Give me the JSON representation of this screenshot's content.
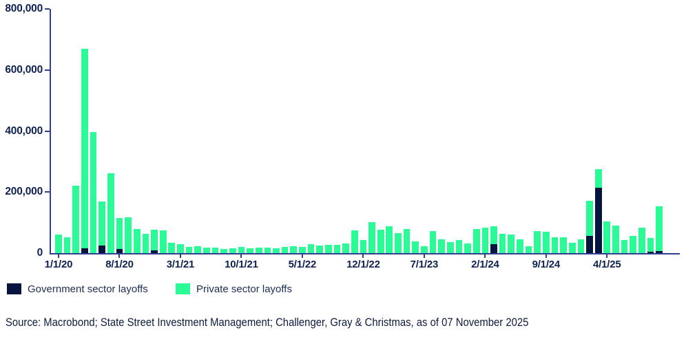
{
  "colors": {
    "government": "#061440",
    "private": "#2afb96",
    "axis": "#2e3f8f",
    "tick_text": "#0f2150",
    "legend_text": "#1b2c55",
    "source_text": "#0c1b3d",
    "background": "#ffffff"
  },
  "legend": {
    "items": [
      {
        "label": "Government sector layoffs",
        "color": "#061440"
      },
      {
        "label": "Private sector layoffs",
        "color": "#2afb96"
      }
    ]
  },
  "source": {
    "text": "Source: Macrobond; State Street Investment Management; Challenger, Gray & Christmas, as of 07 November 2025"
  },
  "chart_data": {
    "type": "bar",
    "stacked": true,
    "grid": false,
    "legend_position": "bottom-left",
    "ylim": [
      0,
      800000
    ],
    "y_ticks": [
      0,
      200000,
      400000,
      600000,
      800000
    ],
    "y_tick_labels": [
      "0",
      "200,000",
      "400,000",
      "600,000",
      "800,000"
    ],
    "x_tick_every": 7,
    "x_tick_labels": [
      "1/1/20",
      "8/1/20",
      "3/1/21",
      "10/1/21",
      "5/1/22",
      "12/1/22",
      "7/1/23",
      "2/1/24",
      "9/1/24",
      "4/1/25"
    ],
    "x": [
      "1/1/20",
      "2/1/20",
      "3/1/20",
      "4/1/20",
      "5/1/20",
      "6/1/20",
      "7/1/20",
      "8/1/20",
      "9/1/20",
      "10/1/20",
      "11/1/20",
      "12/1/20",
      "1/1/21",
      "2/1/21",
      "3/1/21",
      "4/1/21",
      "5/1/21",
      "6/1/21",
      "7/1/21",
      "8/1/21",
      "9/1/21",
      "10/1/21",
      "11/1/21",
      "12/1/21",
      "1/1/22",
      "2/1/22",
      "3/1/22",
      "4/1/22",
      "5/1/22",
      "6/1/22",
      "7/1/22",
      "8/1/22",
      "9/1/22",
      "10/1/22",
      "11/1/22",
      "12/1/22",
      "1/1/23",
      "2/1/23",
      "3/1/23",
      "4/1/23",
      "5/1/23",
      "6/1/23",
      "7/1/23",
      "8/1/23",
      "9/1/23",
      "10/1/23",
      "11/1/23",
      "12/1/23",
      "1/1/24",
      "2/1/24",
      "3/1/24",
      "4/1/24",
      "5/1/24",
      "6/1/24",
      "7/1/24",
      "8/1/24",
      "9/1/24",
      "10/1/24",
      "11/1/24",
      "12/1/24",
      "1/1/25",
      "2/1/25",
      "3/1/25",
      "4/1/25",
      "5/1/25",
      "6/1/25",
      "7/1/25",
      "8/1/25",
      "9/1/25",
      "10/1/25"
    ],
    "series": [
      {
        "name": "Government sector layoffs",
        "color": "#061440",
        "values": [
          0,
          0,
          0,
          15000,
          0,
          25000,
          0,
          13000,
          0,
          0,
          0,
          9000,
          0,
          0,
          0,
          0,
          0,
          0,
          0,
          0,
          0,
          0,
          0,
          0,
          0,
          0,
          0,
          0,
          0,
          0,
          0,
          0,
          0,
          0,
          0,
          0,
          0,
          0,
          0,
          0,
          0,
          0,
          0,
          0,
          0,
          0,
          0,
          0,
          0,
          0,
          30000,
          0,
          0,
          0,
          0,
          0,
          0,
          0,
          0,
          0,
          0,
          57000,
          215000,
          0,
          0,
          0,
          0,
          0,
          5000,
          7000
        ]
      },
      {
        "name": "Private sector layoffs",
        "color": "#2afb96",
        "values": [
          61000,
          51000,
          220000,
          655000,
          396000,
          145000,
          261000,
          103000,
          117000,
          79000,
          63000,
          68000,
          75000,
          33000,
          29000,
          21000,
          23000,
          19000,
          17000,
          14000,
          16000,
          20000,
          15000,
          17000,
          19000,
          15000,
          20000,
          23000,
          20000,
          30000,
          24000,
          27000,
          27000,
          32000,
          75000,
          43000,
          101000,
          76000,
          88000,
          65000,
          79000,
          39000,
          22000,
          73000,
          46000,
          35000,
          43000,
          31000,
          80000,
          83000,
          58000,
          62000,
          61000,
          45000,
          23000,
          73000,
          70000,
          52000,
          52000,
          34000,
          45000,
          115000,
          60000,
          103000,
          90000,
          42000,
          57000,
          84000,
          45000,
          146000
        ]
      }
    ]
  }
}
